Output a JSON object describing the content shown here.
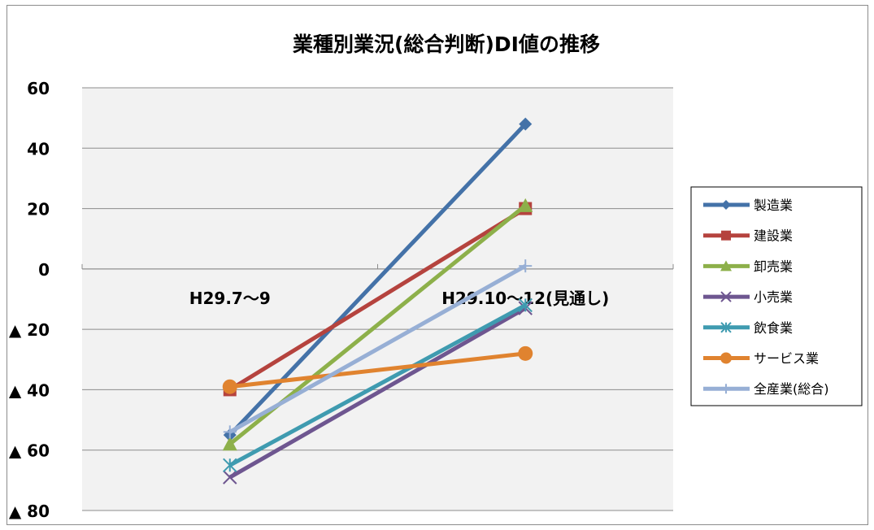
{
  "chart_data": {
    "type": "line",
    "title": "業種別業況(総合判断)DI値の推移",
    "categories": [
      "H29.7〜9",
      "H29.10〜12(見通し)"
    ],
    "ylim": [
      -80,
      60
    ],
    "y_ticks": [
      60,
      40,
      20,
      0,
      -20,
      -40,
      -60,
      -80
    ],
    "y_tick_labels": [
      "60",
      "40",
      "20",
      "0",
      "▲ 20",
      "▲ 40",
      "▲ 60",
      "▲ 80"
    ],
    "grid": true,
    "legend_position": "right",
    "series": [
      {
        "name": "製造業",
        "values": [
          -55,
          48
        ],
        "color": "#4472a8",
        "marker": "diamond"
      },
      {
        "name": "建設業",
        "values": [
          -40,
          20
        ],
        "color": "#b5433e",
        "marker": "square"
      },
      {
        "name": "卸売業",
        "values": [
          -58,
          21
        ],
        "color": "#8db04a",
        "marker": "triangle"
      },
      {
        "name": "小売業",
        "values": [
          -69,
          -13
        ],
        "color": "#6e5690",
        "marker": "x"
      },
      {
        "name": "飲食業",
        "values": [
          -65,
          -12
        ],
        "color": "#3f9bb0",
        "marker": "star"
      },
      {
        "name": "サービス業",
        "values": [
          -39,
          -28
        ],
        "color": "#e0832f",
        "marker": "circle"
      },
      {
        "name": "全産業(総合)",
        "values": [
          -54,
          1
        ],
        "color": "#97afd5",
        "marker": "plus"
      }
    ]
  }
}
